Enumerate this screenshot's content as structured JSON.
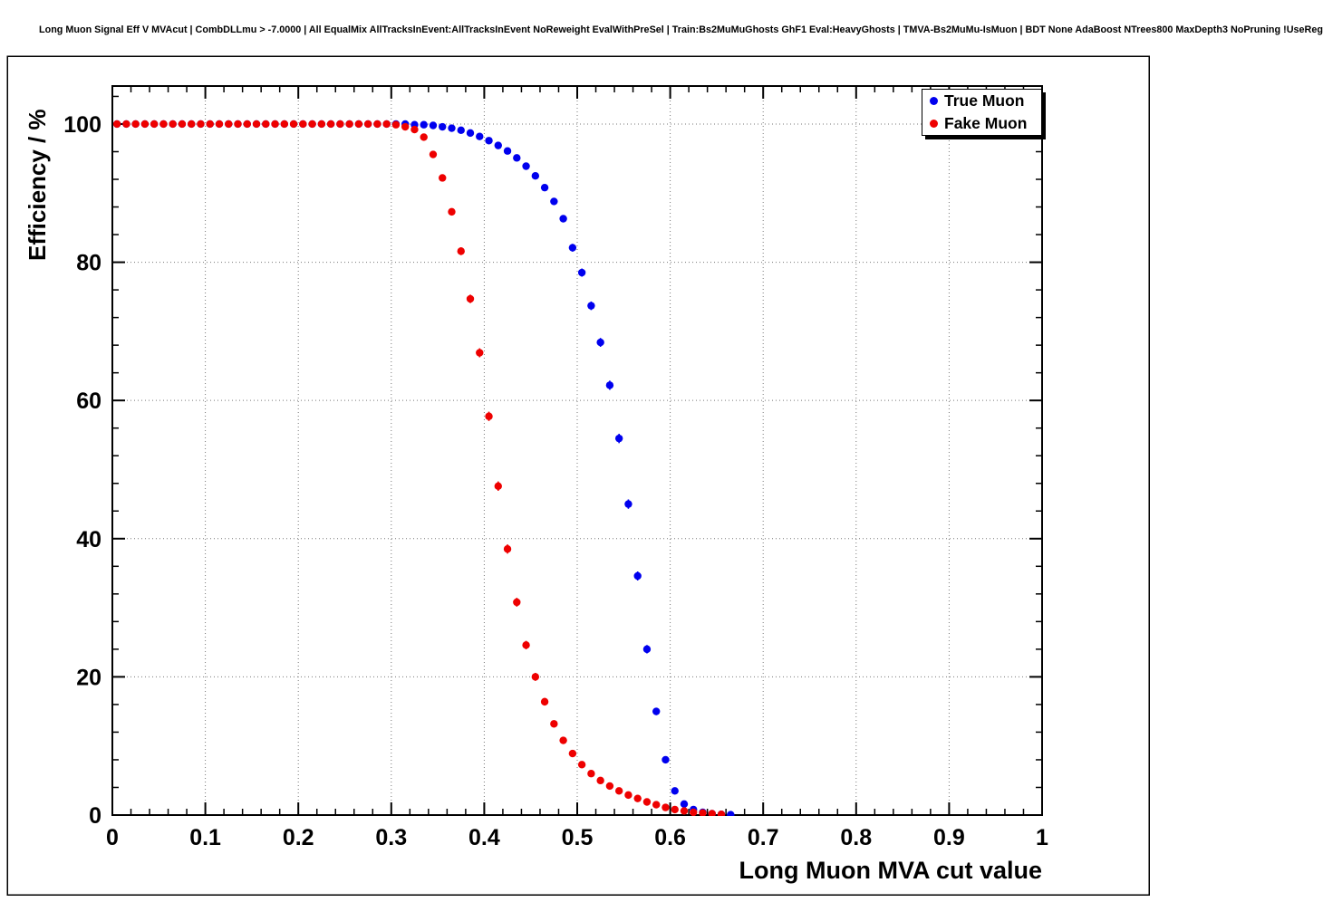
{
  "chart_data": {
    "type": "scatter",
    "title": "Long Muon Signal Eff V MVAcut | CombDLLmu > -7.0000 | All EqualMix AllTracksInEvent:AllTracksInEvent NoReweight EvalWithPreSel | Train:Bs2MuMuGhosts GhF1 Eval:HeavyGhosts | TMVA-Bs2MuMu-IsMuon | BDT None AdaBoost NTrees800 MaxDepth3 NoPruning !UseReg",
    "xlabel": "Long Muon MVA cut value",
    "ylabel": "Efficiency / %",
    "xlim": [
      0,
      1
    ],
    "ylim": [
      0,
      105.5
    ],
    "grid": true,
    "grid_style": "dotted",
    "x_ticks": {
      "values": [
        0,
        0.1,
        0.2,
        0.3,
        0.4,
        0.5,
        0.6,
        0.7,
        0.8,
        0.9,
        1
      ],
      "labels": [
        "0",
        "0.1",
        "0.2",
        "0.3",
        "0.4",
        "0.5",
        "0.6",
        "0.7",
        "0.8",
        "0.9",
        "1"
      ]
    },
    "y_ticks": {
      "values": [
        0,
        20,
        40,
        60,
        80,
        100
      ],
      "labels": [
        "0",
        "20",
        "40",
        "60",
        "80",
        "100"
      ]
    },
    "legend": {
      "position": "top-right",
      "entries": [
        {
          "label": "True Muon",
          "color": "#0000ee"
        },
        {
          "label": "Fake Muon",
          "color": "#ee0000"
        }
      ]
    },
    "series": [
      {
        "name": "True Muon",
        "color": "#0000ee",
        "marker": "circle",
        "x": [
          0.005,
          0.015,
          0.025,
          0.035,
          0.045,
          0.055,
          0.065,
          0.075,
          0.085,
          0.095,
          0.105,
          0.115,
          0.125,
          0.135,
          0.145,
          0.155,
          0.165,
          0.175,
          0.185,
          0.195,
          0.205,
          0.215,
          0.225,
          0.235,
          0.245,
          0.255,
          0.265,
          0.275,
          0.285,
          0.295,
          0.305,
          0.315,
          0.325,
          0.335,
          0.345,
          0.355,
          0.365,
          0.375,
          0.385,
          0.395,
          0.405,
          0.415,
          0.425,
          0.435,
          0.445,
          0.455,
          0.465,
          0.475,
          0.485,
          0.495,
          0.505,
          0.515,
          0.525,
          0.535,
          0.545,
          0.555,
          0.565,
          0.575,
          0.585,
          0.595,
          0.605,
          0.615,
          0.625,
          0.635,
          0.645,
          0.655,
          0.665
        ],
        "y": [
          100,
          100,
          100,
          100,
          100,
          100,
          100,
          100,
          100,
          100,
          100,
          100,
          100,
          100,
          100,
          100,
          100,
          100,
          100,
          100,
          100,
          100,
          100,
          100,
          100,
          100,
          100,
          100,
          100,
          100,
          100,
          100,
          99.9,
          99.9,
          99.8,
          99.6,
          99.4,
          99.1,
          98.7,
          98.2,
          97.6,
          96.9,
          96.1,
          95.1,
          93.9,
          92.5,
          90.8,
          88.8,
          86.3,
          82.1,
          78.5,
          73.7,
          68.4,
          62.2,
          54.5,
          45.0,
          34.6,
          24.0,
          15.0,
          8.0,
          3.5,
          1.6,
          0.8,
          0.4,
          0.2,
          0.1,
          0.05
        ]
      },
      {
        "name": "Fake Muon",
        "color": "#ee0000",
        "marker": "circle",
        "x": [
          0.005,
          0.015,
          0.025,
          0.035,
          0.045,
          0.055,
          0.065,
          0.075,
          0.085,
          0.095,
          0.105,
          0.115,
          0.125,
          0.135,
          0.145,
          0.155,
          0.165,
          0.175,
          0.185,
          0.195,
          0.205,
          0.215,
          0.225,
          0.235,
          0.245,
          0.255,
          0.265,
          0.275,
          0.285,
          0.295,
          0.305,
          0.315,
          0.325,
          0.335,
          0.345,
          0.355,
          0.365,
          0.375,
          0.385,
          0.395,
          0.405,
          0.415,
          0.425,
          0.435,
          0.445,
          0.455,
          0.465,
          0.475,
          0.485,
          0.495,
          0.505,
          0.515,
          0.525,
          0.535,
          0.545,
          0.555,
          0.565,
          0.575,
          0.585,
          0.595,
          0.605,
          0.615,
          0.625,
          0.635,
          0.645,
          0.655
        ],
        "y": [
          100,
          100,
          100,
          100,
          100,
          100,
          100,
          100,
          100,
          100,
          100,
          100,
          100,
          100,
          100,
          100,
          100,
          100,
          100,
          100,
          100,
          100,
          100,
          100,
          100,
          100,
          100,
          100,
          100,
          100,
          99.9,
          99.6,
          99.2,
          98.1,
          95.6,
          92.2,
          87.3,
          81.6,
          74.7,
          66.9,
          57.7,
          47.6,
          38.5,
          30.8,
          24.6,
          20.0,
          16.4,
          13.2,
          10.8,
          8.9,
          7.3,
          6.0,
          5.0,
          4.2,
          3.5,
          2.9,
          2.4,
          1.9,
          1.5,
          1.1,
          0.8,
          0.6,
          0.4,
          0.3,
          0.2,
          0.1
        ]
      }
    ]
  }
}
